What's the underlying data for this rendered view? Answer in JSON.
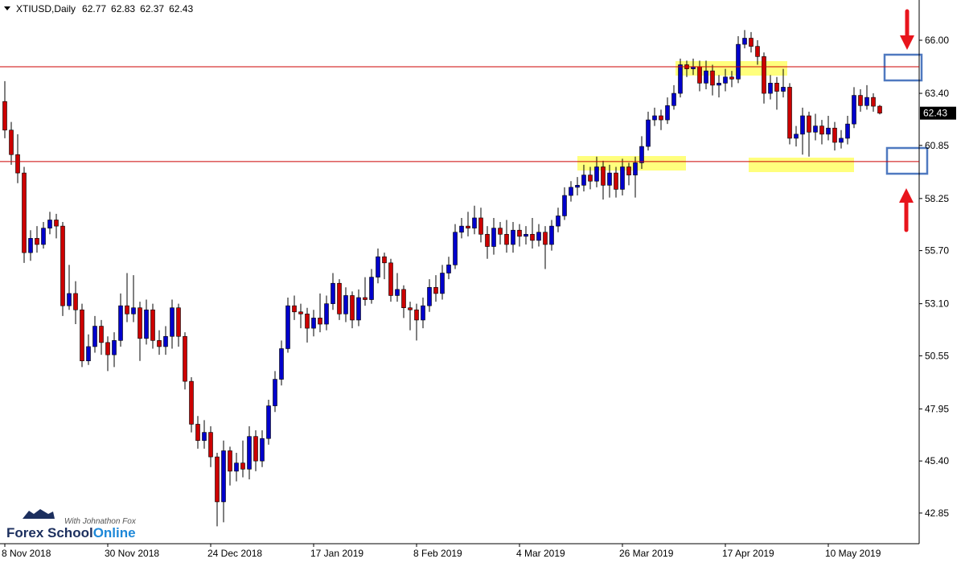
{
  "chart_data": {
    "type": "candlestick",
    "title": "XTIUSD,Daily",
    "categories": [
      "8 Nov 2018",
      null,
      null,
      null,
      null,
      null,
      null,
      null,
      null,
      null,
      null,
      null,
      null,
      null,
      null,
      null,
      "30 Nov 2018",
      null,
      null,
      null,
      null,
      null,
      null,
      null,
      null,
      null,
      null,
      null,
      null,
      null,
      null,
      null,
      "24 Dec 2018",
      null,
      null,
      null,
      null,
      null,
      null,
      null,
      null,
      null,
      null,
      null,
      null,
      null,
      null,
      null,
      "17 Jan 2019",
      null,
      null,
      null,
      null,
      null,
      null,
      null,
      null,
      null,
      null,
      null,
      null,
      null,
      null,
      null,
      "8 Feb 2019",
      null,
      null,
      null,
      null,
      null,
      null,
      null,
      null,
      null,
      null,
      null,
      null,
      null,
      null,
      null,
      "4 Mar 2019",
      null,
      null,
      null,
      null,
      null,
      null,
      null,
      null,
      null,
      null,
      null,
      null,
      null,
      null,
      null,
      "26 Mar 2019",
      null,
      null,
      null,
      null,
      null,
      null,
      null,
      null,
      null,
      null,
      null,
      null,
      null,
      null,
      null,
      "17 Apr 2019",
      null,
      null,
      null,
      null,
      null,
      null,
      null,
      null,
      null,
      null,
      null,
      null,
      null,
      null,
      null,
      "10 May 2019",
      null,
      null,
      null,
      null,
      null,
      null,
      null,
      null
    ],
    "open": [
      63.0,
      61.6,
      60.4,
      59.5,
      55.6,
      56.3,
      56.0,
      56.8,
      57.2,
      56.9,
      53.0,
      53.6,
      52.8,
      50.3,
      51.0,
      52.0,
      51.2,
      50.6,
      51.3,
      53.0,
      52.6,
      52.9,
      51.4,
      52.8,
      51.3,
      51.0,
      51.5,
      52.9,
      51.5,
      49.3,
      47.2,
      46.4,
      46.8,
      45.6,
      43.4,
      45.9,
      44.9,
      45.3,
      45.0,
      46.6,
      45.4,
      46.5,
      48.1,
      49.4,
      50.9,
      53.0,
      52.7,
      52.6,
      51.9,
      52.4,
      52.1,
      53.1,
      54.1,
      52.6,
      53.5,
      52.3,
      53.4,
      53.3,
      54.4,
      55.4,
      55.1,
      53.5,
      53.8,
      52.9,
      52.8,
      52.3,
      53.0,
      53.9,
      53.6,
      54.6,
      55.0,
      56.6,
      56.9,
      56.8,
      57.3,
      56.5,
      55.9,
      56.8,
      56.5,
      56.0,
      56.7,
      56.4,
      56.5,
      56.2,
      56.6,
      56.0,
      56.9,
      57.4,
      58.4,
      58.8,
      58.9,
      59.4,
      59.1,
      59.8,
      58.9,
      59.5,
      58.7,
      59.8,
      59.4,
      60.0,
      60.8,
      62.1,
      62.3,
      62.1,
      62.8,
      63.4,
      64.8,
      64.6,
      64.7,
      63.9,
      64.5,
      63.8,
      63.9,
      64.2,
      64.1,
      65.8,
      66.1,
      65.7,
      65.2,
      63.4,
      63.9,
      63.5,
      63.7,
      61.2,
      61.4,
      62.3,
      61.5,
      61.8,
      61.4,
      61.7,
      61.0,
      61.2,
      61.9,
      63.3,
      62.8,
      63.2,
      62.77
    ],
    "high": [
      64.0,
      62.0,
      61.4,
      59.8,
      56.7,
      56.9,
      57.1,
      57.6,
      57.5,
      57.1,
      55.0,
      54.2,
      53.1,
      51.6,
      52.5,
      52.3,
      51.5,
      51.7,
      53.6,
      54.6,
      54.5,
      53.2,
      53.3,
      53.1,
      51.8,
      52.0,
      53.3,
      53.1,
      51.7,
      49.5,
      47.6,
      47.4,
      47.1,
      45.8,
      46.4,
      46.1,
      45.8,
      46.4,
      47.1,
      46.9,
      46.9,
      48.4,
      49.8,
      51.3,
      53.4,
      53.5,
      53.1,
      52.9,
      52.8,
      53.6,
      53.5,
      54.6,
      54.3,
      53.9,
      53.7,
      53.8,
      54.4,
      54.8,
      55.8,
      55.6,
      55.3,
      54.6,
      54.0,
      53.2,
      53.1,
      53.4,
      54.3,
      54.5,
      55.0,
      55.4,
      57.0,
      57.3,
      57.6,
      57.9,
      57.8,
      56.9,
      57.3,
      57.1,
      57.2,
      57.1,
      57.0,
      56.9,
      57.3,
      57.0,
      56.9,
      57.2,
      57.8,
      58.8,
      59.1,
      59.3,
      59.9,
      59.8,
      60.3,
      60.1,
      59.9,
      59.8,
      60.2,
      60.0,
      60.3,
      61.3,
      62.5,
      62.7,
      62.6,
      63.2,
      63.8,
      65.1,
      65.0,
      65.1,
      65.0,
      65.0,
      64.8,
      64.3,
      64.6,
      64.5,
      66.2,
      66.5,
      66.4,
      66.0,
      65.4,
      64.3,
      64.2,
      64.6,
      63.9,
      61.8,
      62.7,
      62.5,
      62.4,
      62.1,
      62.3,
      62.0,
      61.6,
      62.3,
      63.7,
      63.6,
      63.8,
      63.4,
      62.83
    ],
    "low": [
      61.2,
      59.9,
      59.0,
      55.1,
      55.2,
      55.6,
      55.8,
      56.5,
      56.3,
      52.5,
      52.8,
      52.1,
      50.0,
      50.1,
      50.7,
      50.6,
      49.8,
      50.0,
      51.0,
      52.2,
      52.2,
      50.3,
      51.1,
      50.9,
      50.6,
      50.6,
      50.9,
      51.0,
      48.9,
      46.8,
      46.0,
      46.0,
      45.1,
      42.2,
      42.4,
      44.2,
      44.4,
      44.6,
      44.5,
      44.9,
      45.1,
      46.2,
      47.8,
      49.1,
      50.7,
      52.3,
      51.9,
      51.2,
      51.5,
      51.7,
      51.8,
      52.8,
      52.3,
      52.2,
      51.9,
      52.0,
      53.0,
      53.1,
      54.1,
      54.3,
      53.2,
      53.2,
      52.4,
      51.8,
      51.3,
      51.9,
      52.7,
      53.2,
      53.3,
      54.3,
      54.8,
      56.3,
      56.4,
      56.5,
      56.1,
      55.3,
      55.5,
      56.0,
      55.6,
      55.6,
      55.9,
      56.0,
      55.8,
      55.9,
      54.8,
      55.7,
      56.6,
      57.2,
      58.1,
      58.4,
      58.6,
      58.7,
      58.8,
      58.2,
      58.3,
      58.3,
      58.4,
      58.9,
      58.3,
      59.7,
      60.6,
      61.8,
      61.6,
      61.9,
      62.6,
      63.2,
      64.2,
      64.3,
      63.5,
      63.6,
      63.3,
      63.2,
      63.5,
      63.7,
      63.9,
      65.6,
      65.4,
      64.8,
      62.9,
      63.1,
      62.6,
      63.2,
      60.9,
      60.8,
      60.4,
      60.3,
      61.1,
      60.9,
      61.1,
      60.6,
      60.7,
      60.9,
      61.7,
      62.5,
      62.6,
      62.5,
      62.37
    ],
    "close": [
      61.6,
      60.4,
      59.5,
      55.6,
      56.3,
      56.0,
      56.8,
      57.2,
      56.9,
      53.0,
      53.6,
      52.8,
      50.3,
      51.0,
      52.0,
      51.2,
      50.6,
      51.3,
      53.0,
      52.6,
      52.9,
      51.4,
      52.8,
      51.3,
      51.0,
      51.5,
      52.9,
      51.5,
      49.3,
      47.2,
      46.4,
      46.8,
      45.6,
      43.4,
      45.9,
      44.9,
      45.3,
      45.0,
      46.6,
      45.4,
      46.5,
      48.1,
      49.4,
      50.9,
      53.0,
      52.7,
      52.6,
      51.9,
      52.4,
      52.1,
      53.1,
      54.1,
      52.6,
      53.5,
      52.3,
      53.4,
      53.3,
      54.4,
      55.4,
      55.1,
      53.5,
      53.8,
      52.9,
      52.8,
      52.3,
      53.0,
      53.9,
      53.6,
      54.6,
      55.0,
      56.6,
      56.9,
      56.8,
      57.3,
      56.5,
      55.9,
      56.8,
      56.5,
      56.0,
      56.7,
      56.4,
      56.5,
      56.2,
      56.6,
      56.0,
      56.9,
      57.4,
      58.4,
      58.8,
      58.9,
      59.4,
      59.1,
      59.8,
      58.9,
      59.5,
      58.7,
      59.8,
      59.4,
      60.0,
      60.8,
      62.1,
      62.3,
      62.1,
      62.8,
      63.4,
      64.8,
      64.6,
      64.7,
      63.9,
      64.5,
      63.8,
      63.9,
      64.2,
      64.1,
      65.8,
      66.1,
      65.7,
      65.2,
      63.4,
      63.9,
      63.5,
      63.7,
      61.2,
      61.4,
      62.3,
      61.5,
      61.8,
      61.4,
      61.7,
      61.0,
      61.2,
      61.9,
      63.3,
      62.8,
      63.2,
      62.77,
      62.43
    ],
    "up_color": "#0000cc",
    "down_color": "#cc0000",
    "ylim": [
      41.35,
      67.97
    ],
    "yticks": [
      {
        "value": 42.85,
        "label": "42.85"
      },
      {
        "value": 45.4,
        "label": "45.40"
      },
      {
        "value": 47.95,
        "label": "47.95"
      },
      {
        "value": 50.55,
        "label": "50.55"
      },
      {
        "value": 53.1,
        "label": "53.10"
      },
      {
        "value": 55.7,
        "label": "55.70"
      },
      {
        "value": 58.25,
        "label": "58.25"
      },
      {
        "value": 60.85,
        "label": "60.85"
      },
      {
        "value": 63.4,
        "label": "63.40"
      },
      {
        "value": 66.0,
        "label": "66.00"
      }
    ],
    "hlines": [
      64.7,
      60.06
    ],
    "hline_color": "#cc0000",
    "grid": false
  },
  "watermark": {
    "tagline": "With Johnathon Fox",
    "brand": "Forex School",
    "brand_accent": "Online"
  }
}
